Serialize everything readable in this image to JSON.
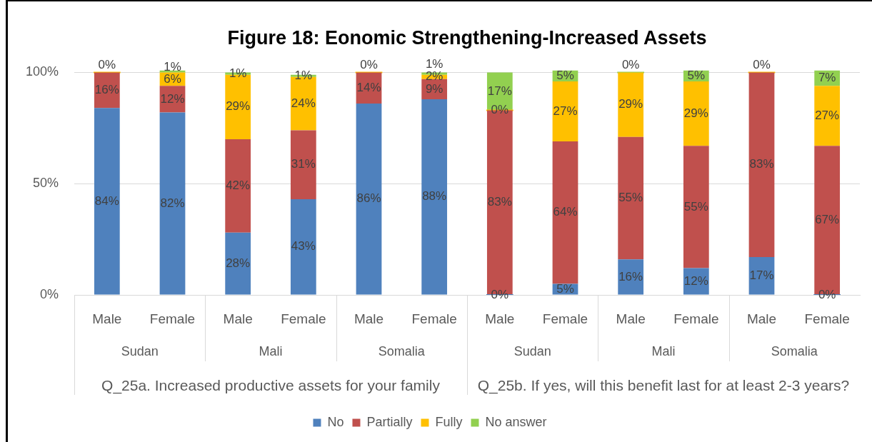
{
  "chart_data": {
    "type": "bar",
    "title": "Figure 18: Eonomic Strengthening-Increased Assets",
    "categories": [
      "Male",
      "Female",
      "Male",
      "Female",
      "Male",
      "Female",
      "Male",
      "Female",
      "Male",
      "Female",
      "Male",
      "Female"
    ],
    "series": [
      {
        "name": "No",
        "color": "#4f81bd",
        "values": [
          84,
          82,
          28,
          43,
          86,
          88,
          0,
          5,
          16,
          12,
          17,
          0
        ],
        "value_labels": [
          "84%",
          "82%",
          "28%",
          "43%",
          "86%",
          "88%",
          "0%",
          "5%",
          "16%",
          "12%",
          "17%",
          "0%"
        ]
      },
      {
        "name": "Partially",
        "color": "#c0504d",
        "values": [
          16,
          12,
          42,
          31,
          14,
          9,
          83,
          64,
          55,
          55,
          83,
          67
        ],
        "value_labels": [
          "16%",
          "12%",
          "42%",
          "31%",
          "14%",
          "9%",
          "83%",
          "64%",
          "55%",
          "55%",
          "83%",
          "67%"
        ]
      },
      {
        "name": "Fully",
        "color": "#ffc000",
        "values": [
          0,
          6,
          29,
          24,
          0,
          2,
          0,
          27,
          29,
          29,
          0,
          27
        ],
        "value_labels": [
          "0%",
          "6%",
          "29%",
          "24%",
          "0%",
          "2%",
          "0%",
          "27%",
          "29%",
          "29%",
          "0%",
          "27%"
        ]
      },
      {
        "name": "No answer",
        "color": "#92d050",
        "values": [
          null,
          1,
          1,
          1,
          null,
          1,
          17,
          5,
          0,
          5,
          null,
          7
        ],
        "value_labels": [
          null,
          "1%",
          "1%",
          "1%",
          null,
          "1%",
          "17%",
          "5%",
          "0%",
          "5%",
          null,
          "7%"
        ]
      }
    ],
    "stacked": true,
    "ylim": [
      0,
      101
    ],
    "yticks": [
      {
        "value": 0,
        "label": "0%"
      },
      {
        "value": 50,
        "label": "50%"
      },
      {
        "value": 100,
        "label": "100%"
      }
    ],
    "grid": "y",
    "legend": "bottom",
    "annotations": [
      "Sudan",
      "Mali",
      "Somalia",
      "Sudan",
      "Mali",
      "Somalia",
      "Q_25a. Increased productive assets for your family",
      "Q_25b. If yes, will this benefit last for at least 2-3 years?"
    ]
  }
}
